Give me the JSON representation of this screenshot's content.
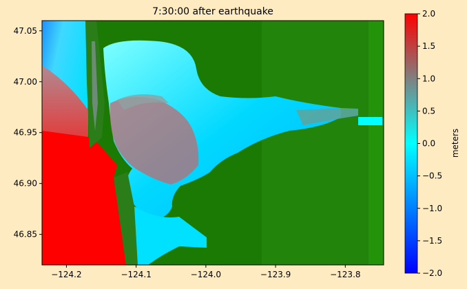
{
  "chart_data": {
    "type": "heatmap",
    "title": "7:30:00 after earthquake",
    "xlabel": "",
    "ylabel": "",
    "xlim": [
      -124.235,
      -123.745
    ],
    "ylim": [
      46.82,
      47.06
    ],
    "xticks": [
      -124.2,
      -124.1,
      -124.0,
      -123.9,
      -123.8
    ],
    "xtick_labels": [
      "−124.2",
      "−124.1",
      "−124.0",
      "−123.9",
      "−123.8"
    ],
    "yticks": [
      46.85,
      46.9,
      46.95,
      47.0,
      47.05
    ],
    "ytick_labels": [
      "46.85",
      "46.90",
      "46.95",
      "47.00",
      "47.05"
    ],
    "grid": false,
    "colorbar": {
      "label": "meters",
      "vmin": -2.0,
      "vmax": 2.0,
      "ticks": [
        -2.0,
        -1.5,
        -1.0,
        -0.5,
        0.0,
        0.5,
        1.0,
        1.5,
        2.0
      ],
      "tick_labels": [
        "−2.0",
        "−1.5",
        "−1.0",
        "−0.5",
        "0.0",
        "0.5",
        "1.0",
        "1.5",
        "2.0"
      ],
      "colors": [
        "#0000ff",
        "#00ffff",
        "#808080",
        "#ff0000"
      ]
    },
    "land_color": "#1a7a05",
    "description_layers": [
      "ocean surface height",
      "land topography"
    ]
  }
}
